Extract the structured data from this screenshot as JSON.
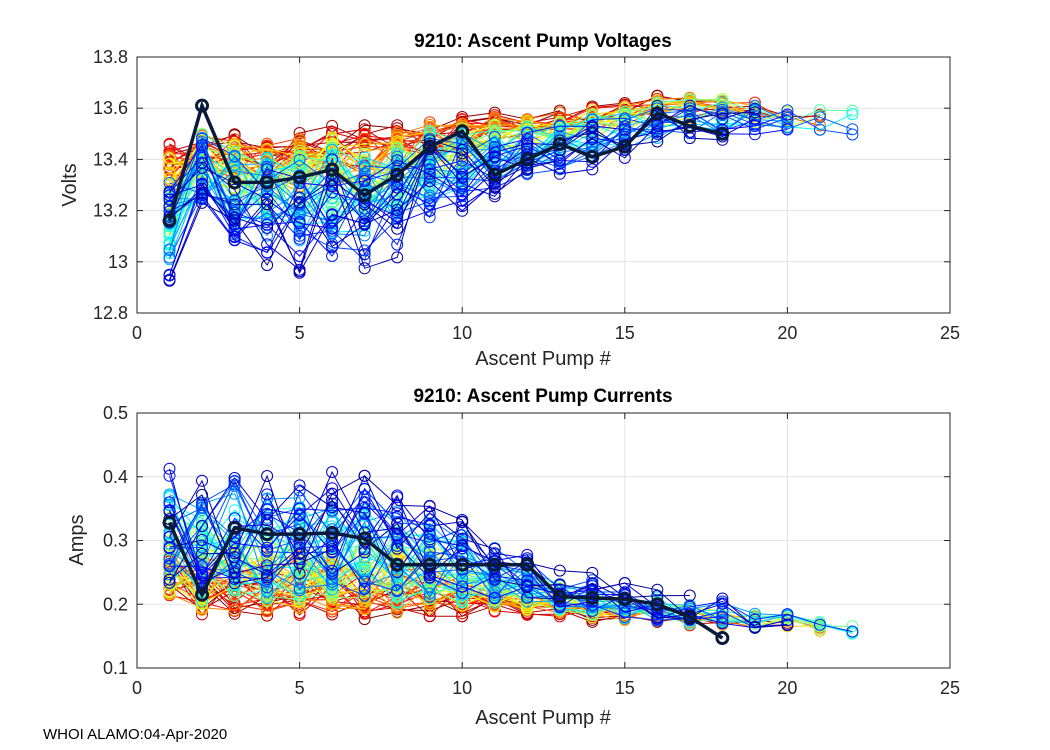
{
  "footer": "WHOI ALAMO:04-Apr-2020",
  "chart_data": [
    {
      "type": "line",
      "title": "9210: Ascent Pump Voltages",
      "xlabel": "Ascent Pump #",
      "ylabel": "Volts",
      "xlim": [
        0,
        25
      ],
      "ylim": [
        12.8,
        13.8
      ],
      "xticks": [
        0,
        5,
        10,
        15,
        20,
        25
      ],
      "yticks": [
        12.8,
        13,
        13.2,
        13.4,
        13.6,
        13.8
      ],
      "ytick_labels": [
        "12.8",
        "13",
        "13.2",
        "13.4",
        "13.6",
        "13.8"
      ],
      "grid": true,
      "background_profiles": {
        "count": 80,
        "colormap": "jet (blue = most recent, dark red = earliest)",
        "early_mean": [
          13.42,
          13.45,
          13.44,
          13.42,
          13.44,
          13.47,
          13.47,
          13.48,
          13.5,
          13.52,
          13.55,
          13.55,
          13.57,
          13.58,
          13.6,
          13.62,
          13.62,
          13.62,
          13.6,
          13.58,
          13.56,
          13.55
        ],
        "late_mean": [
          13.05,
          13.35,
          13.2,
          13.18,
          13.15,
          13.18,
          13.14,
          13.2,
          13.3,
          13.33,
          13.36,
          13.4,
          13.42,
          13.45,
          13.48,
          13.52,
          13.55,
          13.55,
          13.55,
          13.55,
          13.55,
          13.55
        ],
        "spread": [
          0.22,
          0.18,
          0.2,
          0.2,
          0.22,
          0.22,
          0.22,
          0.2,
          0.18,
          0.15,
          0.12,
          0.1,
          0.1,
          0.1,
          0.09,
          0.09,
          0.08,
          0.08,
          0.07,
          0.07,
          0.06,
          0.06
        ]
      },
      "highlight_series": {
        "name": "current profile",
        "color": "#0a1a3a",
        "x": [
          1,
          2,
          3,
          4,
          5,
          6,
          7,
          8,
          9,
          10,
          11,
          12,
          13,
          14,
          15,
          16,
          17,
          18
        ],
        "y": [
          13.16,
          13.61,
          13.31,
          13.31,
          13.33,
          13.36,
          13.26,
          13.34,
          13.45,
          13.51,
          13.34,
          13.4,
          13.46,
          13.41,
          13.45,
          13.58,
          13.53,
          13.5
        ]
      }
    },
    {
      "type": "line",
      "title": "9210: Ascent Pump Currents",
      "xlabel": "Ascent Pump #",
      "ylabel": "Amps",
      "xlim": [
        0,
        25
      ],
      "ylim": [
        0.1,
        0.5
      ],
      "xticks": [
        0,
        5,
        10,
        15,
        20,
        25
      ],
      "yticks": [
        0.1,
        0.2,
        0.3,
        0.4,
        0.5
      ],
      "ytick_labels": [
        "0.1",
        "0.2",
        "0.3",
        "0.4",
        "0.5"
      ],
      "grid": true,
      "background_profiles": {
        "count": 80,
        "colormap": "jet (blue = most recent, dark red = earliest)",
        "early_mean": [
          0.24,
          0.21,
          0.21,
          0.21,
          0.21,
          0.21,
          0.21,
          0.2,
          0.2,
          0.2,
          0.2,
          0.19,
          0.19,
          0.18,
          0.18,
          0.18,
          0.17,
          0.17,
          0.17,
          0.17,
          0.16,
          0.16
        ],
        "late_mean": [
          0.33,
          0.32,
          0.33,
          0.32,
          0.33,
          0.33,
          0.32,
          0.31,
          0.3,
          0.28,
          0.26,
          0.25,
          0.23,
          0.22,
          0.21,
          0.2,
          0.2,
          0.19,
          0.18,
          0.18,
          0.17,
          0.16
        ],
        "spread": [
          0.1,
          0.1,
          0.1,
          0.1,
          0.1,
          0.1,
          0.1,
          0.09,
          0.08,
          0.06,
          0.05,
          0.04,
          0.035,
          0.03,
          0.03,
          0.025,
          0.025,
          0.02,
          0.02,
          0.015,
          0.01,
          0.01
        ]
      },
      "highlight_series": {
        "name": "current profile",
        "color": "#0a1a3a",
        "x": [
          1,
          2,
          3,
          4,
          5,
          6,
          7,
          8,
          9,
          10,
          11,
          12,
          13,
          14,
          15,
          16,
          17,
          18
        ],
        "y": [
          0.328,
          0.215,
          0.32,
          0.31,
          0.31,
          0.312,
          0.303,
          0.262,
          0.262,
          0.262,
          0.262,
          0.262,
          0.212,
          0.21,
          0.208,
          0.2,
          0.18,
          0.147
        ]
      }
    }
  ]
}
